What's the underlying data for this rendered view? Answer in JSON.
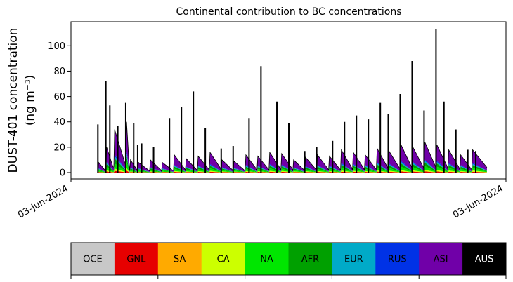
{
  "chart_data": {
    "type": "area",
    "title": "Continental contribution to BC concentrations",
    "ylabel_line1": "DUST-401 concentration",
    "ylabel_line2": "(ng m⁻³)",
    "xlabel": "",
    "x_tick_labels": [
      "03-Jun-2024",
      "03-Jun-2024"
    ],
    "y_ticks": [
      0,
      20,
      40,
      60,
      80,
      100
    ],
    "ylim": [
      -5,
      119
    ],
    "stack_order": [
      "GNL",
      "CA",
      "NA",
      "AFR",
      "EUR",
      "RUS",
      "ASI"
    ],
    "total_spikes": {
      "x_fraction": [
        0.02,
        0.04,
        0.05,
        0.07,
        0.09,
        0.11,
        0.12,
        0.13,
        0.16,
        0.2,
        0.23,
        0.26,
        0.29,
        0.33,
        0.36,
        0.4,
        0.43,
        0.47,
        0.5,
        0.54,
        0.57,
        0.61,
        0.64,
        0.67,
        0.7,
        0.73,
        0.75,
        0.78,
        0.81,
        0.84,
        0.87,
        0.89,
        0.92,
        0.95,
        0.97
      ],
      "peak_values": [
        38,
        72,
        53,
        37,
        55,
        39,
        22,
        23,
        20,
        43,
        52,
        64,
        35,
        19,
        21,
        43,
        84,
        56,
        39,
        17,
        20,
        25,
        40,
        45,
        42,
        55,
        46,
        62,
        88,
        49,
        113,
        56,
        34,
        18,
        17
      ]
    },
    "stack_peaks": {
      "x_fraction": [
        0.02,
        0.04,
        0.06,
        0.09,
        0.1,
        0.12,
        0.15,
        0.18,
        0.21,
        0.24,
        0.27,
        0.3,
        0.33,
        0.36,
        0.39,
        0.42,
        0.45,
        0.48,
        0.51,
        0.54,
        0.57,
        0.6,
        0.63,
        0.66,
        0.69,
        0.72,
        0.75,
        0.78,
        0.81,
        0.84,
        0.87,
        0.9,
        0.93,
        0.96
      ],
      "totals": [
        8,
        20,
        34,
        40,
        10,
        8,
        10,
        8,
        14,
        11,
        13,
        16,
        10,
        9,
        14,
        13,
        16,
        15,
        10,
        12,
        14,
        13,
        18,
        16,
        14,
        19,
        17,
        22,
        20,
        24,
        22,
        18,
        14,
        18
      ]
    },
    "legend": {
      "labels": [
        "OCE",
        "GNL",
        "SA",
        "CA",
        "NA",
        "AFR",
        "EUR",
        "RUS",
        "ASI",
        "AUS"
      ],
      "colors": [
        "#c8c8c8",
        "#e60000",
        "#ffaa00",
        "#ccff00",
        "#00e600",
        "#00a000",
        "#00aac8",
        "#0032e6",
        "#7000a8",
        "#000000"
      ],
      "text_colors": [
        "#000000",
        "#000000",
        "#000000",
        "#000000",
        "#000000",
        "#000000",
        "#000000",
        "#000000",
        "#000000",
        "#ffffff"
      ]
    },
    "colors": {
      "GNL": "#e60000",
      "CA": "#ccff00",
      "NA": "#00e600",
      "AFR": "#00a000",
      "EUR": "#00aac8",
      "RUS": "#0032e6",
      "ASI": "#7000a8",
      "total_line": "#000000"
    }
  }
}
